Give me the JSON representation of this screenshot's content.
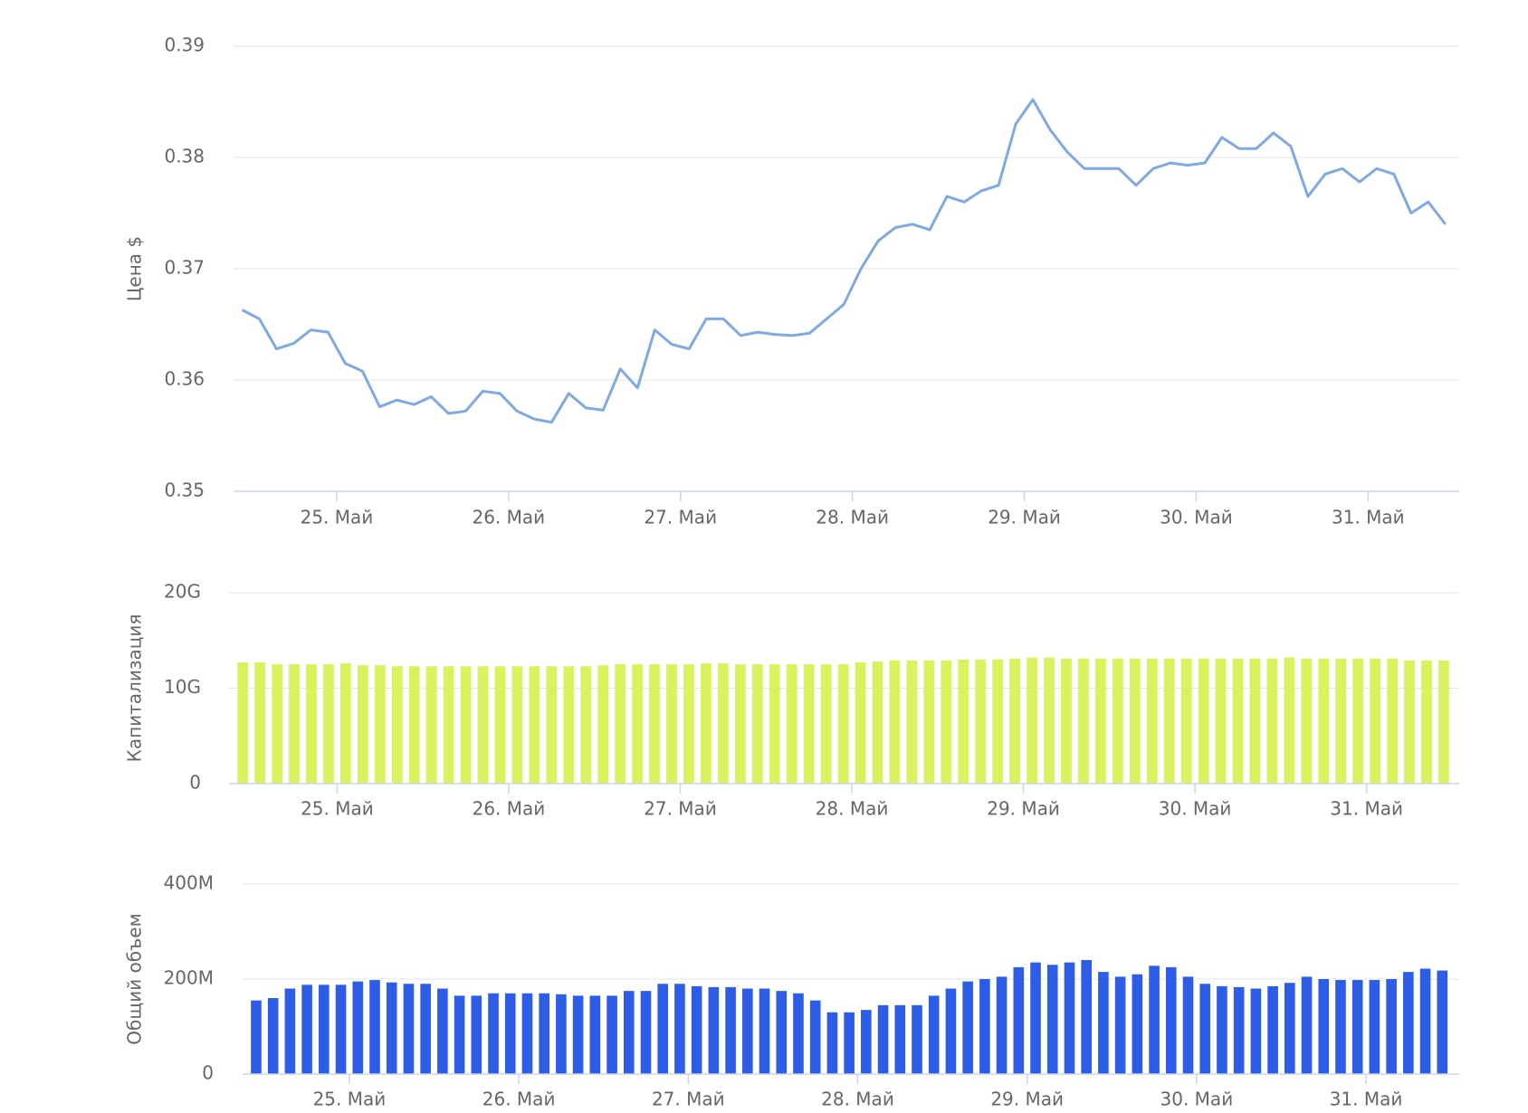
{
  "chart_data": [
    {
      "type": "line",
      "y_label": "Цена $",
      "color": "#7fa9e3",
      "x": [
        24.45,
        24.55,
        24.65,
        24.75,
        24.85,
        24.95,
        25.05,
        25.15,
        25.25,
        25.35,
        25.45,
        25.55,
        25.65,
        25.75,
        25.85,
        25.95,
        26.05,
        26.15,
        26.25,
        26.35,
        26.45,
        26.55,
        26.65,
        26.75,
        26.85,
        26.95,
        27.05,
        27.15,
        27.25,
        27.35,
        27.45,
        27.55,
        27.65,
        27.75,
        27.85,
        27.95,
        28.05,
        28.15,
        28.25,
        28.35,
        28.45,
        28.55,
        28.65,
        28.75,
        28.85,
        28.95,
        29.05,
        29.15,
        29.25,
        29.35,
        29.45,
        29.55,
        29.65,
        29.75,
        29.85,
        29.95,
        30.05,
        30.15,
        30.25,
        30.35,
        30.45,
        30.55,
        30.65,
        30.75,
        30.85,
        30.95,
        31.05,
        31.15,
        31.25,
        31.35,
        31.45
      ],
      "values": [
        0.3663,
        0.3655,
        0.3628,
        0.3633,
        0.3645,
        0.3643,
        0.3615,
        0.3608,
        0.3576,
        0.3582,
        0.3578,
        0.3585,
        0.357,
        0.3572,
        0.359,
        0.3588,
        0.3572,
        0.3565,
        0.3562,
        0.3588,
        0.3575,
        0.3573,
        0.361,
        0.3593,
        0.3645,
        0.3632,
        0.3628,
        0.3655,
        0.3655,
        0.364,
        0.3643,
        0.3641,
        0.364,
        0.3642,
        0.3655,
        0.3668,
        0.37,
        0.3725,
        0.3737,
        0.374,
        0.3735,
        0.3765,
        0.376,
        0.377,
        0.3775,
        0.383,
        0.3852,
        0.3825,
        0.3805,
        0.379,
        0.379,
        0.379,
        0.3775,
        0.379,
        0.3795,
        0.3793,
        0.3795,
        0.3818,
        0.3808,
        0.3808,
        0.3822,
        0.381,
        0.3765,
        0.3785,
        0.379,
        0.3778,
        0.379,
        0.3785,
        0.375,
        0.376,
        0.374
      ],
      "xlim": [
        24.4,
        31.53
      ],
      "xticks": [
        {
          "value": 25,
          "label": "25. Май"
        },
        {
          "value": 26,
          "label": "26. Май"
        },
        {
          "value": 27,
          "label": "27. Май"
        },
        {
          "value": 28,
          "label": "28. Май"
        },
        {
          "value": 29,
          "label": "29. Май"
        },
        {
          "value": 30,
          "label": "30. Май"
        },
        {
          "value": 31,
          "label": "31. Май"
        }
      ],
      "ylim": [
        0.35,
        0.39
      ],
      "yticks": [
        0.35,
        0.36,
        0.37,
        0.38,
        0.39
      ],
      "grid": true
    },
    {
      "type": "bar",
      "y_label": "Капитализация",
      "color": "#d8f35e",
      "x": [
        24.45,
        24.55,
        24.65,
        24.75,
        24.85,
        24.95,
        25.05,
        25.15,
        25.25,
        25.35,
        25.45,
        25.55,
        25.65,
        25.75,
        25.85,
        25.95,
        26.05,
        26.15,
        26.25,
        26.35,
        26.45,
        26.55,
        26.65,
        26.75,
        26.85,
        26.95,
        27.05,
        27.15,
        27.25,
        27.35,
        27.45,
        27.55,
        27.65,
        27.75,
        27.85,
        27.95,
        28.05,
        28.15,
        28.25,
        28.35,
        28.45,
        28.55,
        28.65,
        28.75,
        28.85,
        28.95,
        29.05,
        29.15,
        29.25,
        29.35,
        29.45,
        29.55,
        29.65,
        29.75,
        29.85,
        29.95,
        30.05,
        30.15,
        30.25,
        30.35,
        30.45,
        30.55,
        30.65,
        30.75,
        30.85,
        30.95,
        31.05,
        31.15,
        31.25,
        31.35,
        31.45
      ],
      "values": [
        12700000000,
        12700000000,
        12500000000,
        12500000000,
        12500000000,
        12500000000,
        12600000000,
        12400000000,
        12400000000,
        12300000000,
        12300000000,
        12300000000,
        12300000000,
        12300000000,
        12300000000,
        12300000000,
        12300000000,
        12300000000,
        12300000000,
        12300000000,
        12300000000,
        12400000000,
        12500000000,
        12500000000,
        12500000000,
        12500000000,
        12500000000,
        12600000000,
        12600000000,
        12500000000,
        12500000000,
        12500000000,
        12500000000,
        12500000000,
        12500000000,
        12500000000,
        12700000000,
        12800000000,
        12900000000,
        12900000000,
        12900000000,
        12900000000,
        13000000000,
        13000000000,
        13000000000,
        13100000000,
        13200000000,
        13200000000,
        13100000000,
        13100000000,
        13100000000,
        13100000000,
        13100000000,
        13100000000,
        13100000000,
        13100000000,
        13100000000,
        13100000000,
        13100000000,
        13100000000,
        13100000000,
        13200000000,
        13100000000,
        13100000000,
        13100000000,
        13100000000,
        13100000000,
        13100000000,
        12900000000,
        12900000000,
        12900000000
      ],
      "xlim": [
        24.37,
        31.54
      ],
      "xticks": [
        {
          "value": 25,
          "label": "25. Май"
        },
        {
          "value": 26,
          "label": "26. Май"
        },
        {
          "value": 27,
          "label": "27. Май"
        },
        {
          "value": 28,
          "label": "28. Май"
        },
        {
          "value": 29,
          "label": "29. Май"
        },
        {
          "value": 30,
          "label": "30. Май"
        },
        {
          "value": 31,
          "label": "31. Май"
        }
      ],
      "ylim": [
        0,
        20000000000
      ],
      "yticks": [
        0,
        {
          "value": 10000000000,
          "label": "10G"
        },
        {
          "value": 20000000000,
          "label": "20G"
        }
      ],
      "grid": true
    },
    {
      "type": "bar",
      "y_label": "Общий объем",
      "color": "#2d5de6",
      "x": [
        24.45,
        24.55,
        24.65,
        24.75,
        24.85,
        24.95,
        25.05,
        25.15,
        25.25,
        25.35,
        25.45,
        25.55,
        25.65,
        25.75,
        25.85,
        25.95,
        26.05,
        26.15,
        26.25,
        26.35,
        26.45,
        26.55,
        26.65,
        26.75,
        26.85,
        26.95,
        27.05,
        27.15,
        27.25,
        27.35,
        27.45,
        27.55,
        27.65,
        27.75,
        27.85,
        27.95,
        28.05,
        28.15,
        28.25,
        28.35,
        28.45,
        28.55,
        28.65,
        28.75,
        28.85,
        28.95,
        29.05,
        29.15,
        29.25,
        29.35,
        29.45,
        29.55,
        29.65,
        29.75,
        29.85,
        29.95,
        30.05,
        30.15,
        30.25,
        30.35,
        30.45,
        30.55,
        30.65,
        30.75,
        30.85,
        30.95,
        31.05,
        31.15,
        31.25,
        31.35,
        31.45
      ],
      "values": [
        155000000,
        160000000,
        180000000,
        188000000,
        188000000,
        188000000,
        195000000,
        198000000,
        193000000,
        190000000,
        190000000,
        180000000,
        165000000,
        165000000,
        170000000,
        170000000,
        170000000,
        170000000,
        168000000,
        165000000,
        165000000,
        165000000,
        175000000,
        175000000,
        190000000,
        190000000,
        185000000,
        183000000,
        183000000,
        180000000,
        180000000,
        175000000,
        170000000,
        155000000,
        130000000,
        130000000,
        135000000,
        145000000,
        145000000,
        145000000,
        165000000,
        180000000,
        195000000,
        200000000,
        205000000,
        225000000,
        235000000,
        230000000,
        235000000,
        240000000,
        215000000,
        205000000,
        210000000,
        228000000,
        225000000,
        205000000,
        190000000,
        185000000,
        183000000,
        180000000,
        185000000,
        192000000,
        205000000,
        200000000,
        198000000,
        198000000,
        198000000,
        200000000,
        215000000,
        222000000,
        218000000
      ],
      "xlim": [
        24.37,
        31.55
      ],
      "xticks": [
        {
          "value": 25,
          "label": "25. Май"
        },
        {
          "value": 26,
          "label": "26. Май"
        },
        {
          "value": 27,
          "label": "27. Май"
        },
        {
          "value": 28,
          "label": "28. Май"
        },
        {
          "value": 29,
          "label": "29. Май"
        },
        {
          "value": 30,
          "label": "30. Май"
        },
        {
          "value": 31,
          "label": "31. Май"
        }
      ],
      "ylim": [
        0,
        400000000
      ],
      "yticks": [
        0,
        {
          "value": 200000000,
          "label": "200M"
        },
        {
          "value": 400000000,
          "label": "400M"
        }
      ],
      "grid": true
    }
  ]
}
